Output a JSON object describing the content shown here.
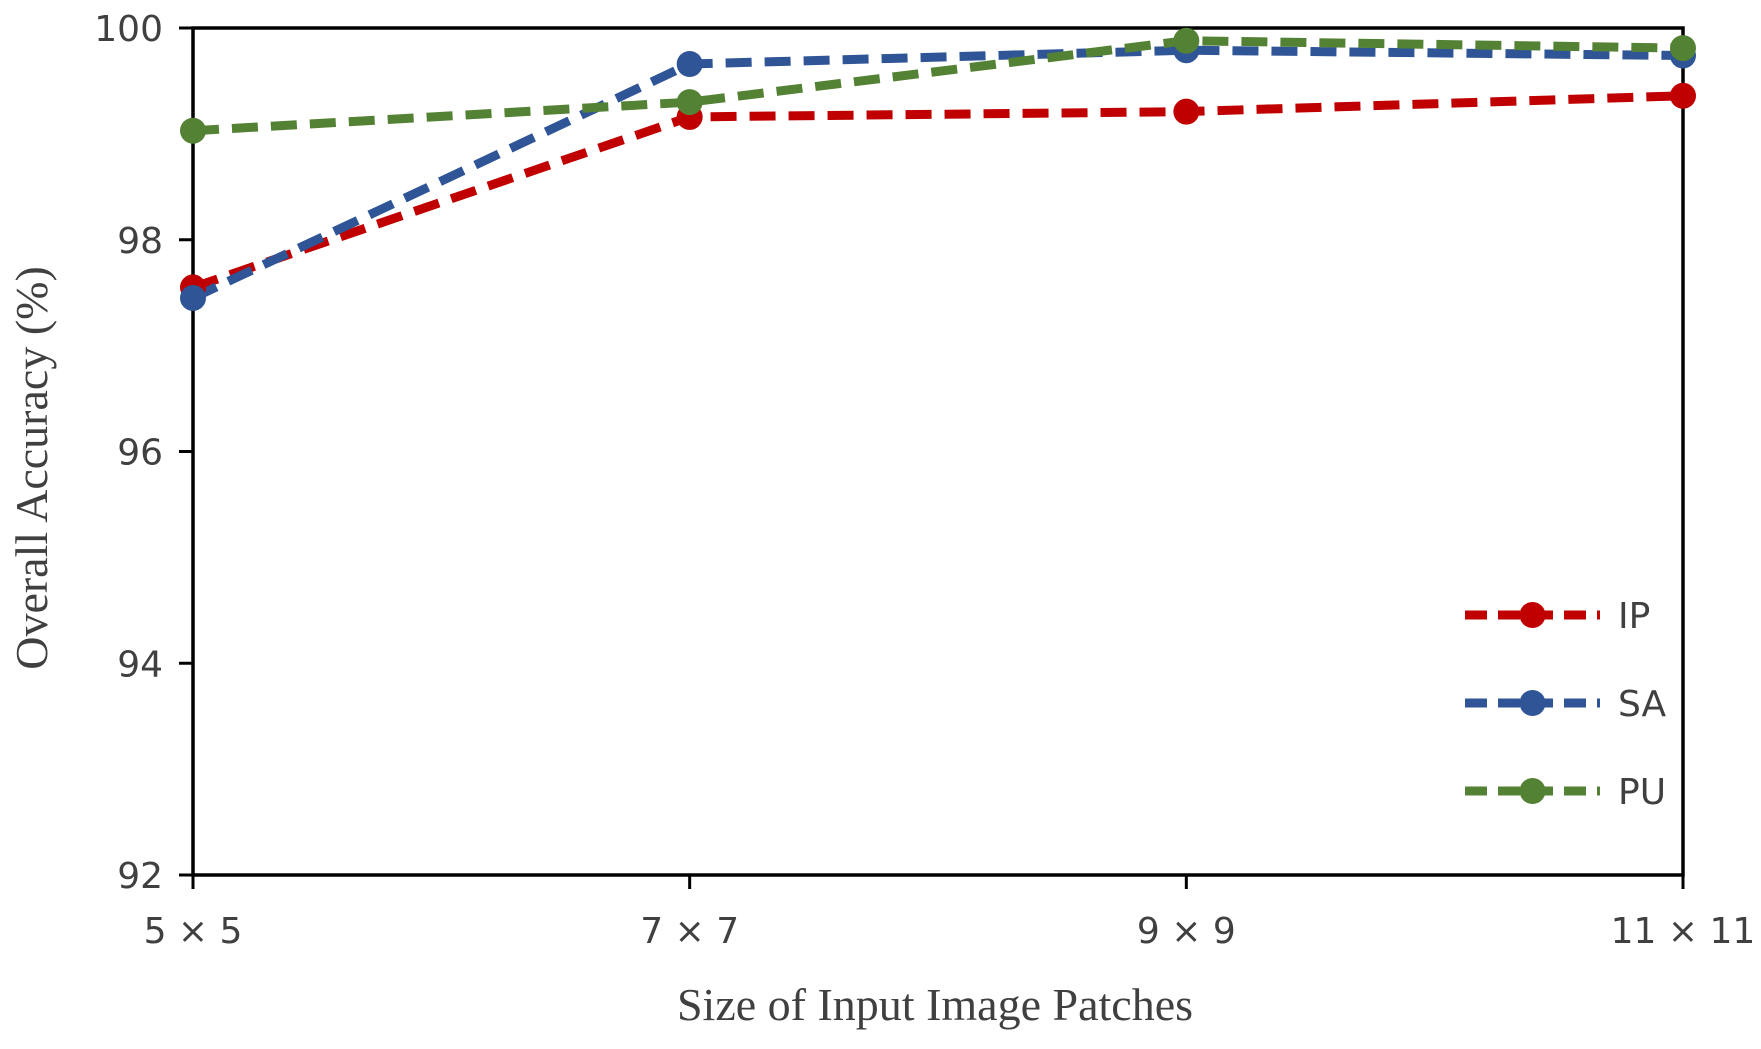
{
  "chart_data": {
    "type": "line",
    "title": "",
    "xlabel": "Size of Input  Image Patches",
    "ylabel": "Overall Accuracy (%)",
    "categories": [
      "5 × 5",
      "7 × 7",
      "9 × 9",
      "11 × 11"
    ],
    "ylim": [
      92,
      100
    ],
    "yticks": [
      "92",
      "94",
      "96",
      "98",
      "100"
    ],
    "grid": false,
    "legend_position": "bottom-right",
    "line_style": "dashed",
    "marker": "circle",
    "series": [
      {
        "name": "IP",
        "color": "#C00000",
        "values": [
          97.55,
          99.16,
          99.21,
          99.36
        ]
      },
      {
        "name": "SA",
        "color": "#2F5597",
        "values": [
          97.45,
          99.66,
          99.79,
          99.74
        ]
      },
      {
        "name": "PU",
        "color": "#548235",
        "values": [
          99.03,
          99.3,
          99.88,
          99.81
        ]
      }
    ]
  }
}
